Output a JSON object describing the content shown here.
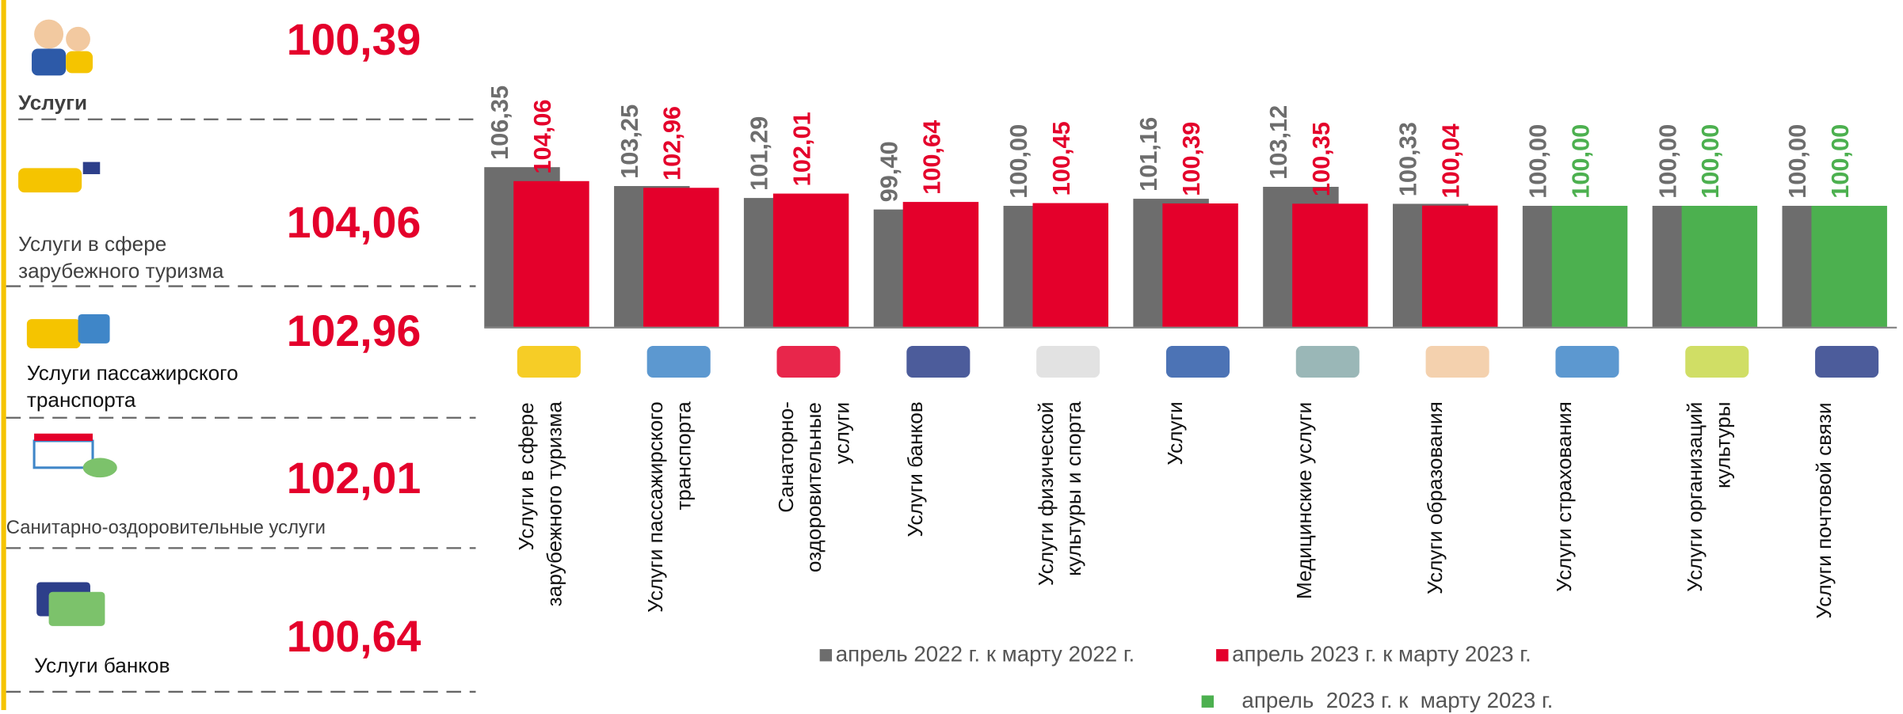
{
  "services": [
    {
      "label": "Услуги",
      "value": "100,39"
    },
    {
      "label": "Услуги в сфере\nзарубежного туризма",
      "value": "104,06"
    },
    {
      "label": "Услуги пассажирского\n транспорта",
      "value": "102,96"
    },
    {
      "label": "Санитарно-оздоровительные услуги",
      "value": "102,01"
    },
    {
      "label": "Услуги банков",
      "value": "100,64"
    }
  ],
  "chart_data": {
    "type": "bar",
    "categories": [
      "Услуги в сфере\nзарубежного туризма",
      "Услуги пассажирского\nтранспорта",
      "Санаторно-\nоздоровительные\nуслуги",
      "Услуги банков",
      "Услуги физической\nкультуры и спорта",
      "Услуги",
      "Медицинские услуги",
      "Услуги образования",
      "Услуги страхования",
      "Услуги организаций\nкультуры",
      "Услуги почтовой связи"
    ],
    "series": [
      {
        "name": "апрель 2022 г. к марту 2022 г.",
        "color": "#6d6d6d",
        "values": [
          106.35,
          103.25,
          101.29,
          99.4,
          100,
          101.16,
          103.12,
          100.33,
          100,
          100,
          100
        ],
        "value_labels": [
          "106,35",
          "103,25",
          "101,29",
          "99,40",
          "100,00",
          "101,16",
          "103,12",
          "100,33",
          "100,00",
          "100,00",
          "100,00"
        ],
        "label_color": "#6d6d6d"
      },
      {
        "name": "апрель 2023 г. к марту 2023 г.",
        "color": "#e4002b",
        "colors": [
          "#e4002b",
          "#e4002b",
          "#e4002b",
          "#e4002b",
          "#e4002b",
          "#e4002b",
          "#e4002b",
          "#e4002b",
          "#4cb04f",
          "#4cb04f",
          "#4cb04f"
        ],
        "values": [
          104.06,
          102.96,
          102.01,
          100.64,
          100.45,
          100.39,
          100.35,
          100.04,
          100,
          100,
          100
        ],
        "value_labels": [
          "104,06",
          "102,96",
          "102,01",
          "100,64",
          "100,45",
          "100,39",
          "100,35",
          "100,04",
          "100,00",
          "100,00",
          "100,00"
        ]
      }
    ],
    "legend": [
      {
        "name": "апрель 2022 г. к марту 2022 г.",
        "color": "#6d6d6d"
      },
      {
        "name": "апрель 2023 г. к марту 2023 г.",
        "color": "#e4002b"
      },
      {
        "name": "апрель  2023 г. к  марту 2023 г.",
        "color": "#4cb04f"
      }
    ],
    "ylim": [
      80,
      107
    ]
  }
}
